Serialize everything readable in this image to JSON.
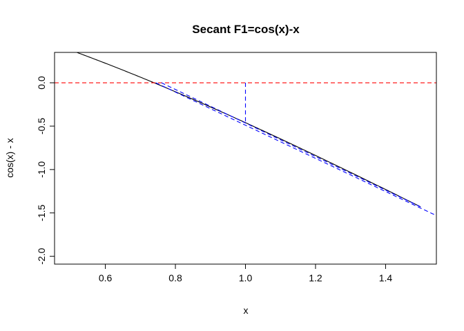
{
  "chart_data": {
    "type": "line",
    "title": "Secant F1=cos(x)-x",
    "xlabel": "x",
    "ylabel": "cos(x) - x",
    "xlim": [
      0.455,
      1.545
    ],
    "ylim": [
      -2.09,
      0.35
    ],
    "x_ticks": [
      0.6,
      0.8,
      1.0,
      1.2,
      1.4
    ],
    "x_tick_labels": [
      "0.6",
      "0.8",
      "1.0",
      "1.2",
      "1.4"
    ],
    "y_ticks": [
      0.0,
      -0.5,
      -1.0,
      -1.5,
      -2.0
    ],
    "y_tick_labels": [
      "0.0",
      "-0.5",
      "-1.0",
      "-1.5",
      "-2.0"
    ],
    "grid": false,
    "series": [
      {
        "function": "cos(x) - x",
        "style": "solid",
        "color": "#000000",
        "x_range": [
          0.5,
          1.5
        ]
      },
      {
        "y": 0,
        "style": "dashed",
        "color": "#ff0000"
      },
      {
        "style": "dashed",
        "color": "#0000ff",
        "points": [
          [
            0.76,
            0.0
          ],
          [
            1.5,
            -1.43
          ]
        ]
      },
      {
        "style": "dashed",
        "color": "#0000ff",
        "points": [
          [
            0.744,
            0.0
          ],
          [
            1.55,
            -1.54
          ]
        ]
      },
      {
        "style": "dashed",
        "color": "#0000ff",
        "points": [
          [
            1.0,
            0.0
          ],
          [
            1.0,
            -0.46
          ]
        ]
      }
    ]
  }
}
